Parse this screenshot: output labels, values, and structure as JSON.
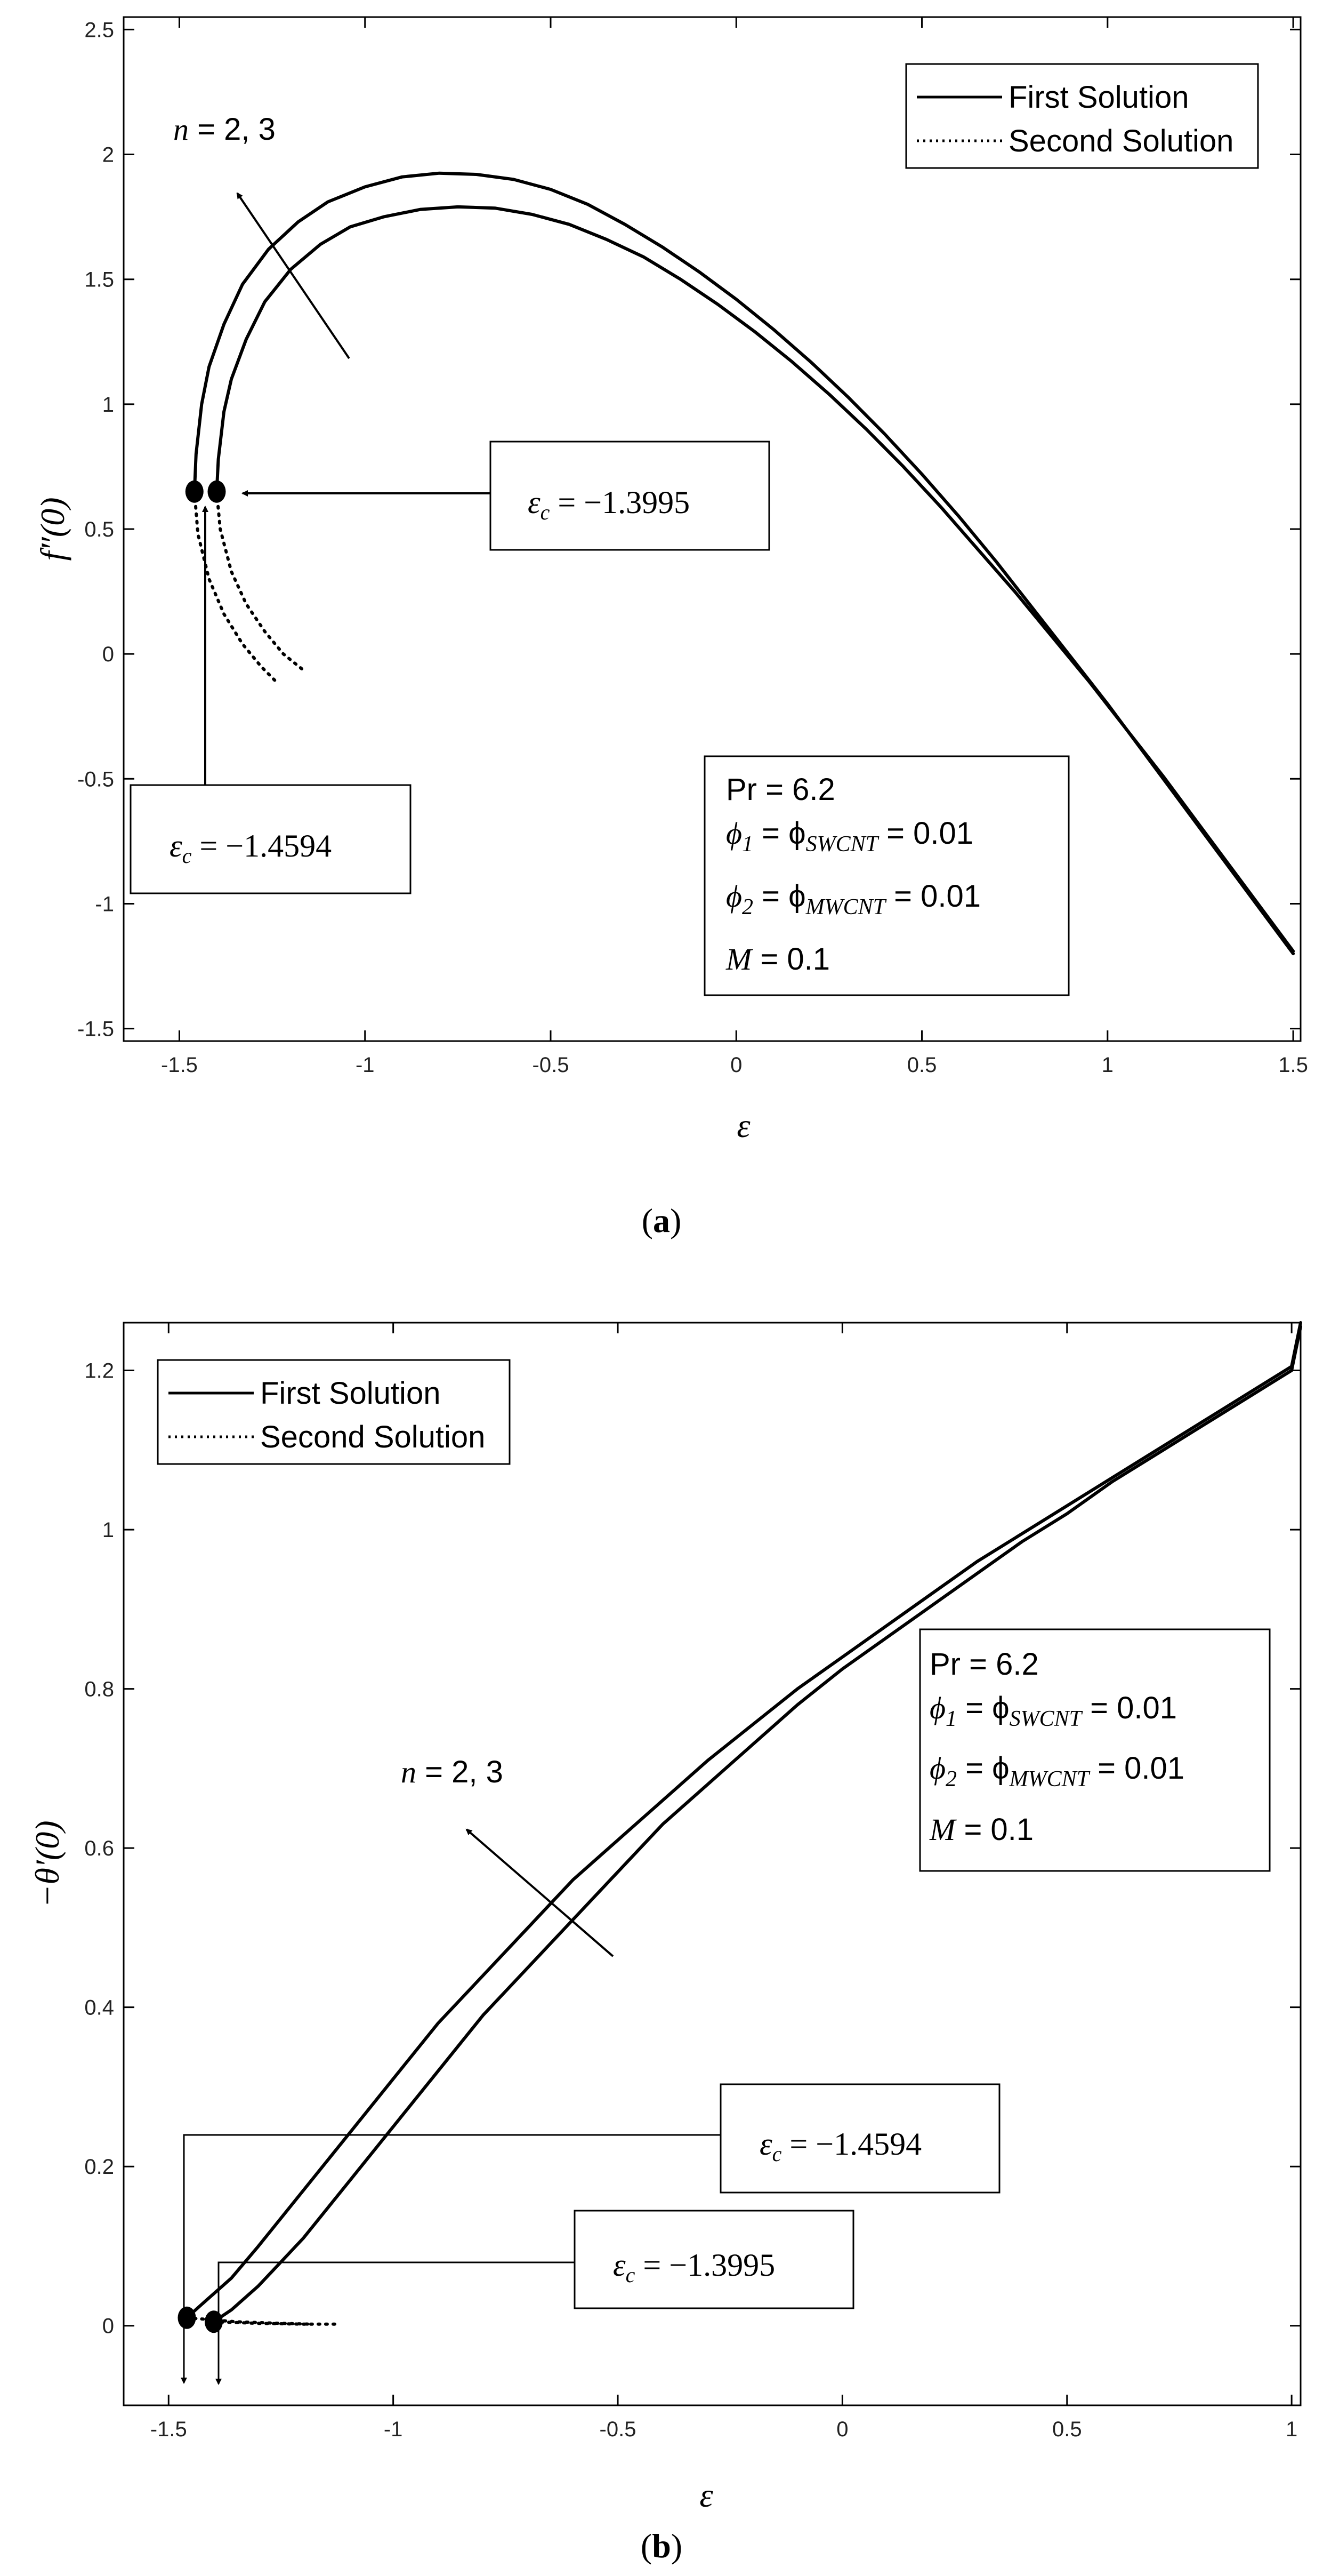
{
  "chart_data": [
    {
      "id": "a",
      "type": "line",
      "caption_letter": "a",
      "xlabel": "ε",
      "ylabel": "f″(0)",
      "xlim": [
        -1.65,
        1.52
      ],
      "ylim": [
        -1.55,
        2.55
      ],
      "xticks": [
        -1.5,
        -1,
        -0.5,
        0,
        0.5,
        1,
        1.5
      ],
      "xtick_labels": [
        "-1.5",
        "-1",
        "-0.5",
        "0",
        "0.5",
        "1",
        "1.5"
      ],
      "yticks": [
        -1.5,
        -1,
        -0.5,
        0,
        0.5,
        1,
        1.5,
        2,
        2.5
      ],
      "ytick_labels": [
        "-1.5",
        "-1",
        "-0.5",
        "0",
        "0.5",
        "1",
        "1.5",
        "2",
        "2.5"
      ],
      "grid": false,
      "legend_placement": "top-right",
      "legend": [
        {
          "label": "First Solution",
          "style": "solid"
        },
        {
          "label": "Second Solution",
          "style": "dotted"
        }
      ],
      "series": [
        {
          "style": "solid",
          "x": [
            -1.4594,
            -1.455,
            -1.44,
            -1.42,
            -1.38,
            -1.33,
            -1.26,
            -1.18,
            -1.1,
            -1.0,
            -0.9,
            -0.8,
            -0.7,
            -0.6,
            -0.5,
            -0.4,
            -0.3,
            -0.2,
            -0.1,
            0,
            0.1,
            0.2,
            0.3,
            0.4,
            0.5,
            0.6,
            0.7,
            0.8,
            0.9,
            1.0,
            1.1,
            1.2,
            1.3,
            1.4,
            1.5
          ],
          "y": [
            0.65,
            0.8,
            1.0,
            1.15,
            1.32,
            1.48,
            1.62,
            1.73,
            1.81,
            1.87,
            1.91,
            1.925,
            1.92,
            1.9,
            1.86,
            1.8,
            1.72,
            1.63,
            1.53,
            1.42,
            1.3,
            1.17,
            1.03,
            0.88,
            0.72,
            0.55,
            0.37,
            0.18,
            -0.01,
            -0.2,
            -0.4,
            -0.6,
            -0.8,
            -1.0,
            -1.2
          ]
        },
        {
          "style": "solid",
          "x": [
            -1.3995,
            -1.395,
            -1.38,
            -1.36,
            -1.32,
            -1.27,
            -1.2,
            -1.12,
            -1.04,
            -0.95,
            -0.85,
            -0.75,
            -0.65,
            -0.55,
            -0.45,
            -0.35,
            -0.25,
            -0.15,
            -0.05,
            0.05,
            0.15,
            0.25,
            0.35,
            0.45,
            0.55,
            0.65,
            0.75,
            0.85,
            0.95,
            1.05,
            1.15,
            1.25,
            1.35,
            1.45,
            1.5
          ],
          "y": [
            0.65,
            0.78,
            0.97,
            1.1,
            1.26,
            1.41,
            1.54,
            1.64,
            1.71,
            1.75,
            1.78,
            1.79,
            1.785,
            1.76,
            1.72,
            1.66,
            1.59,
            1.5,
            1.4,
            1.29,
            1.17,
            1.04,
            0.9,
            0.75,
            0.59,
            0.42,
            0.25,
            0.07,
            -0.11,
            -0.3,
            -0.49,
            -0.69,
            -0.89,
            -1.09,
            -1.19
          ]
        },
        {
          "style": "dotted",
          "x": [
            -1.4594,
            -1.45,
            -1.42,
            -1.38,
            -1.33,
            -1.28,
            -1.24
          ],
          "y": [
            0.65,
            0.48,
            0.3,
            0.16,
            0.04,
            -0.05,
            -0.11
          ]
        },
        {
          "style": "dotted",
          "x": [
            -1.3995,
            -1.39,
            -1.36,
            -1.32,
            -1.27,
            -1.22,
            -1.17
          ],
          "y": [
            0.65,
            0.5,
            0.33,
            0.2,
            0.09,
            0.0,
            -0.06
          ]
        }
      ],
      "critical_points": [
        {
          "x": -1.4594,
          "y": 0.65,
          "label": "ε c = −1.4594",
          "label_eps": "ε",
          "label_sub": "c",
          "label_value": " = −1.4594"
        },
        {
          "x": -1.3995,
          "y": 0.65,
          "label": "ε c = −1.3995",
          "label_eps": "ε",
          "label_sub": "c",
          "label_value": " = −1.3995"
        }
      ],
      "annotation": {
        "n_var": "n",
        "n_text": " = 2, 3"
      },
      "params": {
        "pr": "Pr  = 6.2",
        "phi1_sym": "ϕ",
        "phi1_sub": "1",
        "phi1_eq": " = ϕ",
        "phi1_sub2": "SWCNT",
        "phi1_val": " = 0.01",
        "phi2_sym": "ϕ",
        "phi2_sub": "2",
        "phi2_eq": " = ϕ",
        "phi2_sub2": "MWCNT",
        "phi2_val": " = 0.01",
        "m_sym": "M",
        "m_val": "  = 0.1"
      }
    },
    {
      "id": "b",
      "type": "line",
      "caption_letter": "b",
      "xlabel": "ε",
      "ylabel": "−θ′(0)",
      "xlim": [
        -1.6,
        1.02
      ],
      "ylim": [
        -0.1,
        1.26
      ],
      "xticks": [
        -1.5,
        -1,
        -0.5,
        0,
        0.5,
        1
      ],
      "xtick_labels": [
        "-1.5",
        "-1",
        "-0.5",
        "0",
        "0.5",
        "1"
      ],
      "yticks": [
        0,
        0.2,
        0.4,
        0.6,
        0.8,
        1,
        1.2
      ],
      "ytick_labels": [
        "0",
        "0.2",
        "0.4",
        "0.6",
        "0.8",
        "1",
        "1.2"
      ],
      "grid": false,
      "legend_placement": "top-left",
      "legend": [
        {
          "label": "First Solution",
          "style": "solid"
        },
        {
          "label": "Second Solution",
          "style": "dotted"
        }
      ],
      "series": [
        {
          "style": "solid",
          "x": [
            -1.4594,
            -1.42,
            -1.36,
            -1.3,
            -1.2,
            -1.1,
            -1.0,
            -0.9,
            -0.8,
            -0.7,
            -0.6,
            -0.5,
            -0.4,
            -0.3,
            -0.2,
            -0.1,
            0,
            0.1,
            0.2,
            0.3,
            0.4,
            0.5,
            0.6,
            0.7,
            0.8,
            0.9,
            1.0,
            1.02
          ],
          "y": [
            0.01,
            0.03,
            0.06,
            0.1,
            0.17,
            0.24,
            0.31,
            0.38,
            0.44,
            0.5,
            0.56,
            0.61,
            0.66,
            0.71,
            0.755,
            0.8,
            0.84,
            0.88,
            0.92,
            0.96,
            0.995,
            1.03,
            1.065,
            1.1,
            1.135,
            1.17,
            1.205,
            1.26
          ]
        },
        {
          "style": "solid",
          "x": [
            -1.3995,
            -1.36,
            -1.3,
            -1.2,
            -1.1,
            -1.0,
            -0.9,
            -0.8,
            -0.7,
            -0.6,
            -0.5,
            -0.4,
            -0.3,
            -0.2,
            -0.1,
            0,
            0.1,
            0.2,
            0.3,
            0.4,
            0.5,
            0.6,
            0.7,
            0.8,
            0.9,
            1.0,
            1.02
          ],
          "y": [
            0.005,
            0.02,
            0.05,
            0.11,
            0.18,
            0.25,
            0.32,
            0.39,
            0.45,
            0.51,
            0.57,
            0.63,
            0.68,
            0.73,
            0.78,
            0.825,
            0.865,
            0.905,
            0.945,
            0.985,
            1.02,
            1.06,
            1.095,
            1.13,
            1.165,
            1.2,
            1.255
          ]
        },
        {
          "style": "dotted",
          "x": [
            -1.4594,
            -1.35,
            -1.25,
            -1.18
          ],
          "y": [
            0.01,
            0.005,
            0.003,
            0.002
          ]
        },
        {
          "style": "dotted",
          "x": [
            -1.3995,
            -1.3,
            -1.2,
            -1.12
          ],
          "y": [
            0.005,
            0.003,
            0.002,
            0.002
          ]
        }
      ],
      "critical_points": [
        {
          "x": -1.4594,
          "y": 0.01,
          "label": "ε c = −1.4594",
          "label_eps": "ε",
          "label_sub": "c",
          "label_value": " = −1.4594"
        },
        {
          "x": -1.3995,
          "y": 0.005,
          "label": "ε c = −1.3995",
          "label_eps": "ε",
          "label_sub": "c",
          "label_value": " = −1.3995"
        }
      ],
      "annotation": {
        "n_var": "n",
        "n_text": " = 2, 3"
      },
      "params": {
        "pr": "Pr  = 6.2",
        "phi1_sym": "ϕ",
        "phi1_sub": "1",
        "phi1_eq": " = ϕ",
        "phi1_sub2": "SWCNT",
        "phi1_val": " = 0.01",
        "phi2_sym": "ϕ",
        "phi2_sub": "2",
        "phi2_eq": " = ϕ",
        "phi2_sub2": "MWCNT",
        "phi2_val": " = 0.01",
        "m_sym": "M",
        "m_val": "  = 0.1"
      }
    }
  ]
}
